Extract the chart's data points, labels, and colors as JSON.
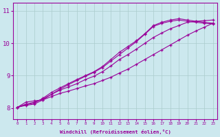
{
  "xlabel": "Windchill (Refroidissement éolien,°C)",
  "ylabel": "",
  "bg_color": "#cce8ee",
  "grid_color": "#aacccc",
  "line_color": "#990099",
  "xlim": [
    -0.5,
    23.5
  ],
  "ylim": [
    7.65,
    11.25
  ],
  "xticks": [
    0,
    1,
    2,
    3,
    4,
    5,
    6,
    7,
    8,
    9,
    10,
    11,
    12,
    13,
    14,
    15,
    16,
    17,
    18,
    19,
    20,
    21,
    22,
    23
  ],
  "yticks": [
    8,
    9,
    10,
    11
  ],
  "lines": [
    [
      8.02,
      8.18,
      8.22,
      8.25,
      8.35,
      8.45,
      8.52,
      8.6,
      8.68,
      8.75,
      8.85,
      8.95,
      9.08,
      9.2,
      9.35,
      9.5,
      9.65,
      9.8,
      9.95,
      10.1,
      10.25,
      10.38,
      10.5,
      10.62
    ],
    [
      8.02,
      8.12,
      8.18,
      8.28,
      8.42,
      8.55,
      8.65,
      8.75,
      8.88,
      8.98,
      9.12,
      9.3,
      9.5,
      9.65,
      9.82,
      10.0,
      10.18,
      10.32,
      10.45,
      10.55,
      10.65,
      10.68,
      10.7,
      10.72
    ],
    [
      8.02,
      8.1,
      8.15,
      8.3,
      8.48,
      8.62,
      8.75,
      8.88,
      9.0,
      9.12,
      9.28,
      9.5,
      9.72,
      9.9,
      10.08,
      10.3,
      10.55,
      10.65,
      10.72,
      10.76,
      10.72,
      10.68,
      10.65,
      10.62
    ],
    [
      8.02,
      8.08,
      8.12,
      8.25,
      8.42,
      8.58,
      8.72,
      8.85,
      8.98,
      9.1,
      9.25,
      9.45,
      9.65,
      9.85,
      10.05,
      10.28,
      10.52,
      10.62,
      10.68,
      10.72,
      10.68,
      10.65,
      10.62,
      10.6
    ]
  ]
}
